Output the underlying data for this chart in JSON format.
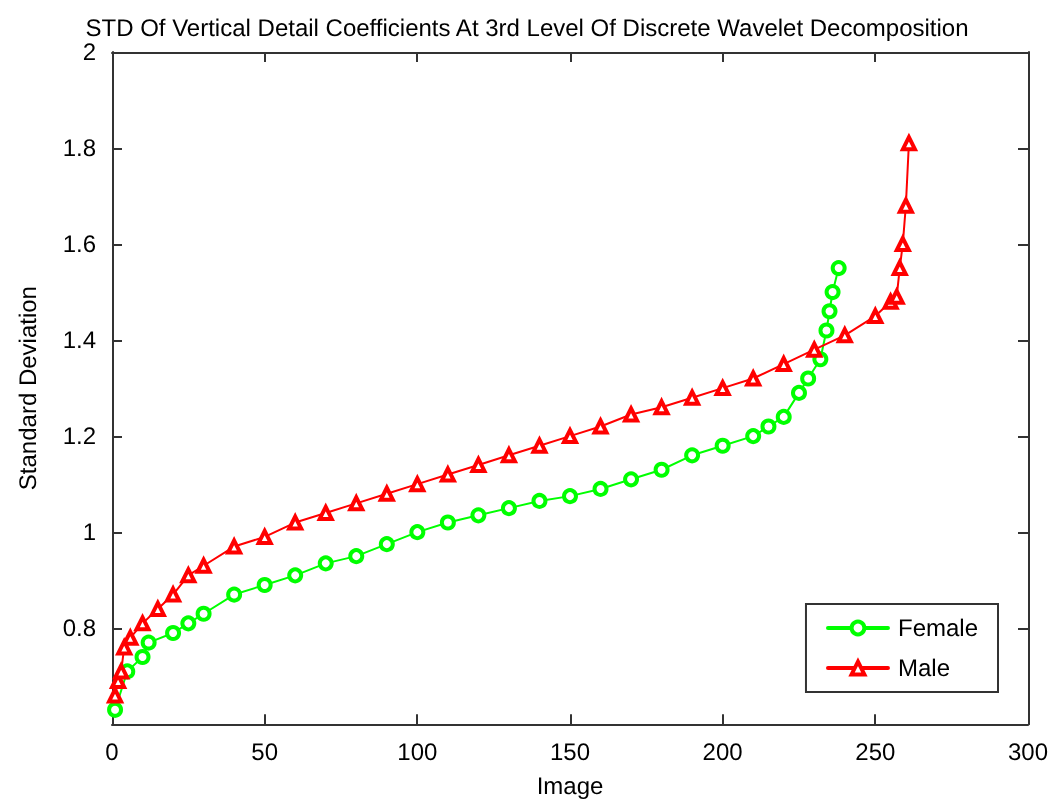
{
  "chart_data": {
    "type": "line",
    "title": "STD Of Vertical Detail Coefficients At 3rd Level Of Discrete Wavelet Decomposition",
    "xlabel": "Image",
    "ylabel": "Standard Deviation",
    "xlim": [
      0,
      300
    ],
    "xticks": [
      0,
      50,
      100,
      150,
      200,
      250,
      300
    ],
    "ylim": [
      0.6,
      2
    ],
    "yticks": [
      {
        "value": 0.6,
        "label": null
      },
      0.8,
      1,
      1.2,
      1.4,
      1.6,
      1.8,
      2
    ],
    "grid": false,
    "legend": "bottom right",
    "line_style": "solid",
    "series": [
      {
        "name": "Female",
        "color": "#00ff00",
        "marker": "circle",
        "x": [
          1,
          5,
          10,
          12,
          20,
          25,
          30,
          40,
          50,
          60,
          70,
          80,
          90,
          100,
          110,
          120,
          130,
          140,
          150,
          160,
          170,
          180,
          190,
          200,
          210,
          215,
          220,
          225,
          228,
          232,
          234,
          235,
          236,
          238
        ],
        "values": [
          0.63,
          0.71,
          0.74,
          0.77,
          0.79,
          0.81,
          0.83,
          0.87,
          0.89,
          0.91,
          0.935,
          0.95,
          0.975,
          1.0,
          1.02,
          1.035,
          1.05,
          1.065,
          1.075,
          1.09,
          1.11,
          1.13,
          1.16,
          1.18,
          1.2,
          1.22,
          1.24,
          1.29,
          1.32,
          1.36,
          1.42,
          1.46,
          1.5,
          1.55
        ]
      },
      {
        "name": "Male",
        "color": "#ff0000",
        "marker": "triangle",
        "x": [
          1,
          2,
          3,
          4,
          6,
          10,
          15,
          20,
          25,
          30,
          40,
          50,
          60,
          70,
          80,
          90,
          100,
          110,
          120,
          130,
          140,
          150,
          160,
          170,
          180,
          190,
          200,
          210,
          220,
          230,
          240,
          250,
          255,
          257,
          258,
          259,
          260,
          261
        ],
        "values": [
          0.66,
          0.69,
          0.71,
          0.76,
          0.78,
          0.81,
          0.84,
          0.87,
          0.91,
          0.93,
          0.97,
          0.99,
          1.02,
          1.04,
          1.06,
          1.08,
          1.1,
          1.12,
          1.14,
          1.16,
          1.18,
          1.2,
          1.22,
          1.245,
          1.26,
          1.28,
          1.3,
          1.32,
          1.35,
          1.38,
          1.41,
          1.45,
          1.48,
          1.49,
          1.55,
          1.6,
          1.68,
          1.81
        ]
      }
    ]
  }
}
